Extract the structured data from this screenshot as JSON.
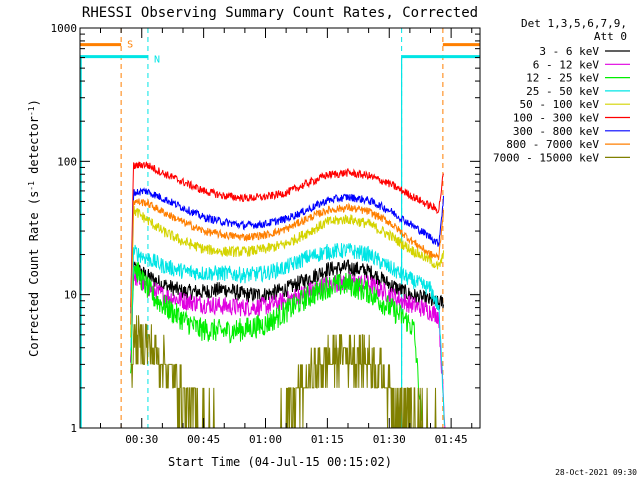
{
  "chart_data": {
    "type": "line",
    "title": "RHESSI Observing Summary Count Rates, Corrected",
    "xlabel": "Start Time (04-Jul-15 00:15:02)",
    "ylabel_parts": [
      "Corrected Count Rate (s",
      "-1",
      " detector",
      "-1",
      ")"
    ],
    "yscale": "log",
    "ylim": [
      1,
      1000
    ],
    "y_ticks": [
      {
        "value": 1,
        "label": "1"
      },
      {
        "value": 10,
        "label": "10"
      },
      {
        "value": 100,
        "label": "100"
      },
      {
        "value": 1000,
        "label": "1000"
      }
    ],
    "xlim_minutes": [
      15.03,
      112
    ],
    "x_ticks": [
      {
        "minute": 30,
        "label": "00:30"
      },
      {
        "minute": 45,
        "label": "00:45"
      },
      {
        "minute": 60,
        "label": "01:00"
      },
      {
        "minute": 75,
        "label": "01:15"
      },
      {
        "minute": 90,
        "label": "01:30"
      },
      {
        "minute": 105,
        "label": "01:45"
      }
    ],
    "legend_header": [
      "Det 1,3,5,6,7,9,",
      "Att 0"
    ],
    "legend_position": "right",
    "timestamp": "28-Oct-2021 09:30",
    "flags": [
      {
        "label": "S",
        "color": "#ff7f00",
        "y_value": 750,
        "intervals": [
          [
            15.03,
            25.0
          ],
          [
            103.0,
            112
          ]
        ],
        "boundaries": [
          25.0,
          103.0,
          113.5
        ]
      },
      {
        "label": "N",
        "color": "#00e5e5",
        "y_value": 610,
        "intervals": [
          [
            15.03,
            31.5
          ],
          [
            93.0,
            112
          ]
        ],
        "boundaries": [
          31.5,
          93.0
        ]
      }
    ],
    "data_window_minutes": [
      27.0,
      103.5
    ],
    "series": [
      {
        "name": "3 - 6 keV",
        "color": "#000000",
        "points": [
          [
            27.3,
            3
          ],
          [
            28,
            16
          ],
          [
            31,
            14
          ],
          [
            35,
            12
          ],
          [
            40,
            10.5
          ],
          [
            45,
            10.5
          ],
          [
            50,
            11
          ],
          [
            55,
            10
          ],
          [
            60,
            10
          ],
          [
            65,
            11
          ],
          [
            70,
            13
          ],
          [
            75,
            15.5
          ],
          [
            80,
            16
          ],
          [
            85,
            15
          ],
          [
            90,
            12
          ],
          [
            95,
            10
          ],
          [
            100,
            9
          ],
          [
            102,
            8.5
          ],
          [
            103.2,
            9
          ]
        ]
      },
      {
        "name": "6 - 12 keV",
        "color": "#e000e0",
        "points": [
          [
            27.3,
            3
          ],
          [
            28,
            14
          ],
          [
            31,
            11.5
          ],
          [
            35,
            10
          ],
          [
            40,
            9
          ],
          [
            45,
            8.5
          ],
          [
            50,
            8.2
          ],
          [
            55,
            8
          ],
          [
            60,
            8.2
          ],
          [
            65,
            9
          ],
          [
            70,
            10.5
          ],
          [
            75,
            12
          ],
          [
            80,
            12.5
          ],
          [
            85,
            12
          ],
          [
            90,
            10
          ],
          [
            95,
            8.5
          ],
          [
            100,
            7.5
          ],
          [
            102,
            7
          ],
          [
            103.5,
            1
          ]
        ]
      },
      {
        "name": "12 - 25 keV",
        "color": "#00ee00",
        "points": [
          [
            27.3,
            2.5
          ],
          [
            28,
            17
          ],
          [
            30,
            13
          ],
          [
            33,
            9.5
          ],
          [
            36,
            8
          ],
          [
            40,
            6.5
          ],
          [
            44,
            5.5
          ],
          [
            50,
            5.3
          ],
          [
            55,
            5.5
          ],
          [
            60,
            6
          ],
          [
            65,
            7.5
          ],
          [
            70,
            9.5
          ],
          [
            75,
            11.5
          ],
          [
            80,
            12
          ],
          [
            85,
            10.5
          ],
          [
            90,
            8
          ],
          [
            94,
            6.5
          ],
          [
            96,
            5.5
          ],
          [
            98,
            1
          ]
        ]
      },
      {
        "name": "25 - 50 keV",
        "color": "#00e5e5",
        "points": [
          [
            27.3,
            3.5
          ],
          [
            28,
            21
          ],
          [
            31,
            19
          ],
          [
            35,
            16.5
          ],
          [
            40,
            15
          ],
          [
            45,
            14.5
          ],
          [
            50,
            14.5
          ],
          [
            55,
            14
          ],
          [
            60,
            14.5
          ],
          [
            65,
            16
          ],
          [
            70,
            19
          ],
          [
            75,
            21
          ],
          [
            80,
            21.5
          ],
          [
            85,
            20
          ],
          [
            90,
            16
          ],
          [
            95,
            13
          ],
          [
            100,
            11
          ],
          [
            102,
            8
          ],
          [
            103.5,
            1
          ]
        ]
      },
      {
        "name": "50 - 100 keV",
        "color": "#d4d400",
        "points": [
          [
            27.3,
            5
          ],
          [
            28,
            43
          ],
          [
            31,
            37
          ],
          [
            35,
            30
          ],
          [
            40,
            25
          ],
          [
            45,
            22
          ],
          [
            50,
            21
          ],
          [
            55,
            21
          ],
          [
            60,
            22
          ],
          [
            65,
            24
          ],
          [
            70,
            29
          ],
          [
            75,
            35
          ],
          [
            80,
            37
          ],
          [
            85,
            34
          ],
          [
            90,
            28
          ],
          [
            95,
            22
          ],
          [
            100,
            18
          ],
          [
            102,
            16
          ],
          [
            103.2,
            20
          ]
        ]
      },
      {
        "name": "100 - 300 keV",
        "color": "#ff0000",
        "points": [
          [
            27.3,
            8
          ],
          [
            28,
            92
          ],
          [
            31,
            95
          ],
          [
            35,
            82
          ],
          [
            40,
            70
          ],
          [
            45,
            60
          ],
          [
            50,
            55
          ],
          [
            55,
            53
          ],
          [
            60,
            54
          ],
          [
            65,
            58
          ],
          [
            70,
            68
          ],
          [
            75,
            79
          ],
          [
            80,
            82
          ],
          [
            85,
            78
          ],
          [
            90,
            68
          ],
          [
            95,
            56
          ],
          [
            100,
            46
          ],
          [
            102,
            43
          ],
          [
            103.2,
            85
          ]
        ]
      },
      {
        "name": "300 - 800 keV",
        "color": "#0000ff",
        "points": [
          [
            27.3,
            7
          ],
          [
            28,
            58
          ],
          [
            31,
            60
          ],
          [
            35,
            53
          ],
          [
            40,
            45
          ],
          [
            45,
            38
          ],
          [
            50,
            35
          ],
          [
            55,
            33
          ],
          [
            60,
            34
          ],
          [
            65,
            37
          ],
          [
            70,
            43
          ],
          [
            75,
            51
          ],
          [
            80,
            54
          ],
          [
            85,
            51
          ],
          [
            90,
            43
          ],
          [
            95,
            34
          ],
          [
            100,
            27
          ],
          [
            102,
            24
          ],
          [
            103.2,
            55
          ]
        ]
      },
      {
        "name": "800 - 7000 keV",
        "color": "#ff7f00",
        "points": [
          [
            27.3,
            6
          ],
          [
            28,
            50
          ],
          [
            31,
            49
          ],
          [
            35,
            42
          ],
          [
            40,
            35
          ],
          [
            45,
            30
          ],
          [
            50,
            28
          ],
          [
            55,
            27
          ],
          [
            60,
            28
          ],
          [
            65,
            31
          ],
          [
            70,
            37
          ],
          [
            75,
            43
          ],
          [
            80,
            45
          ],
          [
            85,
            42
          ],
          [
            90,
            35
          ],
          [
            95,
            26
          ],
          [
            100,
            20
          ],
          [
            102,
            19
          ],
          [
            103.2,
            45
          ]
        ]
      },
      {
        "name": "7000 - 15000 keV",
        "color": "#808000",
        "points": [
          [
            27.3,
            2
          ],
          [
            28,
            4.5
          ],
          [
            31,
            4.5
          ],
          [
            33,
            3.8
          ],
          [
            35,
            3.3
          ],
          [
            37,
            2.6
          ],
          [
            40,
            1.8
          ],
          [
            43,
            1.3
          ],
          [
            46,
            1.1
          ],
          [
            50,
            1
          ],
          [
            55,
            1
          ],
          [
            60,
            1
          ],
          [
            63,
            1
          ],
          [
            66,
            1.4
          ],
          [
            70,
            2.2
          ],
          [
            73,
            2.9
          ],
          [
            76,
            3.4
          ],
          [
            80,
            3.6
          ],
          [
            84,
            3.4
          ],
          [
            88,
            2.6
          ],
          [
            91,
            1.8
          ],
          [
            95,
            1.3
          ],
          [
            100,
            1
          ],
          [
            103.5,
            1
          ]
        ]
      }
    ]
  }
}
